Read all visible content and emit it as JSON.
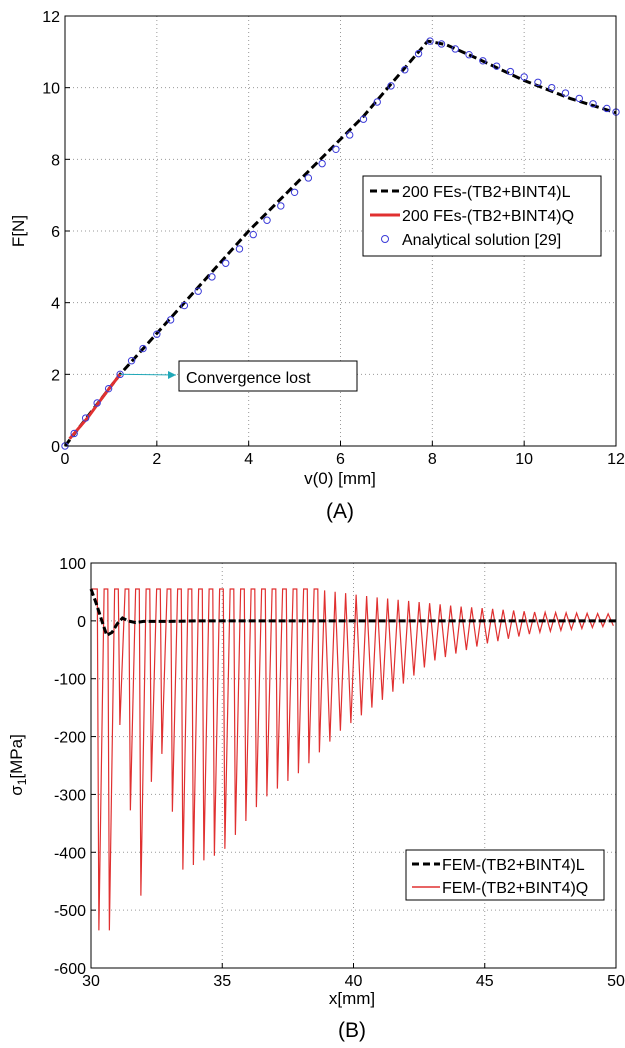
{
  "chart_data": [
    {
      "type": "line",
      "caption": "(A)",
      "xlabel": "v(0) [mm]",
      "ylabel": "F[N]",
      "xlim": [
        0,
        12
      ],
      "ylim": [
        0,
        12
      ],
      "xticks": [
        "0",
        "2",
        "4",
        "6",
        "8",
        "10",
        "12"
      ],
      "yticks": [
        "0",
        "2",
        "4",
        "6",
        "8",
        "10",
        "12"
      ],
      "grid": true,
      "legend_position": "right",
      "series": [
        {
          "name": "200 FEs-(TB2+BINT4)L",
          "style": "dashed",
          "color": "#000000",
          "x": [
            0,
            1.2,
            4,
            6.5,
            7.9,
            8.3,
            9,
            10,
            11,
            12
          ],
          "y": [
            0,
            2.0,
            6.0,
            9.2,
            11.3,
            11.2,
            10.8,
            10.2,
            9.7,
            9.3
          ]
        },
        {
          "name": "200 FEs-(TB2+BINT4)Q",
          "style": "solid",
          "color": "#e03030",
          "x": [
            0.1,
            0.5,
            0.9,
            1.2
          ],
          "y": [
            0.2,
            0.8,
            1.5,
            2.0
          ]
        },
        {
          "name": "Analytical solution [29]",
          "style": "markers",
          "color": "#3a3ad8",
          "x": [
            0,
            0.2,
            0.45,
            0.7,
            0.95,
            1.2,
            1.45,
            1.7,
            2.0,
            2.3,
            2.6,
            2.9,
            3.2,
            3.5,
            3.8,
            4.1,
            4.4,
            4.7,
            5.0,
            5.3,
            5.6,
            5.9,
            6.2,
            6.5,
            6.8,
            7.1,
            7.4,
            7.7,
            7.95,
            8.2,
            8.5,
            8.8,
            9.1,
            9.4,
            9.7,
            10.0,
            10.3,
            10.6,
            10.9,
            11.2,
            11.5,
            11.8,
            12.0
          ],
          "y": [
            0,
            0.35,
            0.78,
            1.2,
            1.6,
            2.0,
            2.38,
            2.72,
            3.12,
            3.52,
            3.92,
            4.32,
            4.72,
            5.1,
            5.5,
            5.9,
            6.3,
            6.7,
            7.08,
            7.48,
            7.88,
            8.28,
            8.68,
            9.12,
            9.6,
            10.05,
            10.5,
            10.95,
            11.3,
            11.22,
            11.08,
            10.92,
            10.75,
            10.6,
            10.45,
            10.3,
            10.15,
            10.0,
            9.85,
            9.7,
            9.55,
            9.42,
            9.32
          ]
        }
      ],
      "annotation": {
        "text": "Convergence lost",
        "arrow_from": [
          1.2,
          2.0
        ],
        "color": "#20a8b8"
      }
    },
    {
      "type": "line",
      "caption": "(B)",
      "xlabel": "x[mm]",
      "ylabel": "σ1[MPa]",
      "ylabel_main": "σ",
      "ylabel_sub": "1",
      "ylabel_unit": "[MPa]",
      "xlim": [
        30,
        50
      ],
      "ylim": [
        -600,
        100
      ],
      "xticks": [
        "30",
        "35",
        "40",
        "45",
        "50"
      ],
      "yticks": [
        "100",
        "0",
        "-100",
        "-200",
        "-300",
        "-400",
        "-500",
        "-600"
      ],
      "grid": true,
      "legend_position": "right",
      "series": [
        {
          "name": "FEM-(TB2+BINT4)L",
          "style": "dashed",
          "color": "#000000",
          "x": [
            30.0,
            30.2,
            30.45,
            30.6,
            30.8,
            31.0,
            31.2,
            31.4,
            31.7,
            32.0,
            33.0,
            34.0,
            36.0,
            40.0,
            45.0,
            50.0
          ],
          "y": [
            55,
            30,
            -5,
            -25,
            -20,
            -5,
            5,
            0,
            -3,
            -1,
            -1,
            0,
            0,
            0,
            0,
            0
          ]
        },
        {
          "name": "FEM-(TB2+BINT4)Q",
          "style": "solid",
          "color": "#e03030",
          "oscillation": {
            "x_start": 30.1,
            "x_end": 50.0,
            "period": 0.4,
            "upper_envelope": [
              [
                30,
                55
              ],
              [
                38.5,
                55
              ],
              [
                41,
                40
              ],
              [
                44,
                25
              ],
              [
                47,
                15
              ],
              [
                50,
                12
              ]
            ],
            "lower_envelope": [
              [
                30.7,
                -535
              ],
              [
                31.1,
                -180
              ],
              [
                31.9,
                -475
              ],
              [
                32.5,
                -180
              ],
              [
                33.5,
                -430
              ],
              [
                35.0,
                -400
              ],
              [
                36.5,
                -310
              ],
              [
                38.0,
                -260
              ],
              [
                39.5,
                -190
              ],
              [
                41.0,
                -140
              ],
              [
                43.0,
                -70
              ],
              [
                45.0,
                -40
              ],
              [
                47.0,
                -20
              ],
              [
                50.0,
                -8
              ]
            ]
          }
        }
      ]
    }
  ]
}
